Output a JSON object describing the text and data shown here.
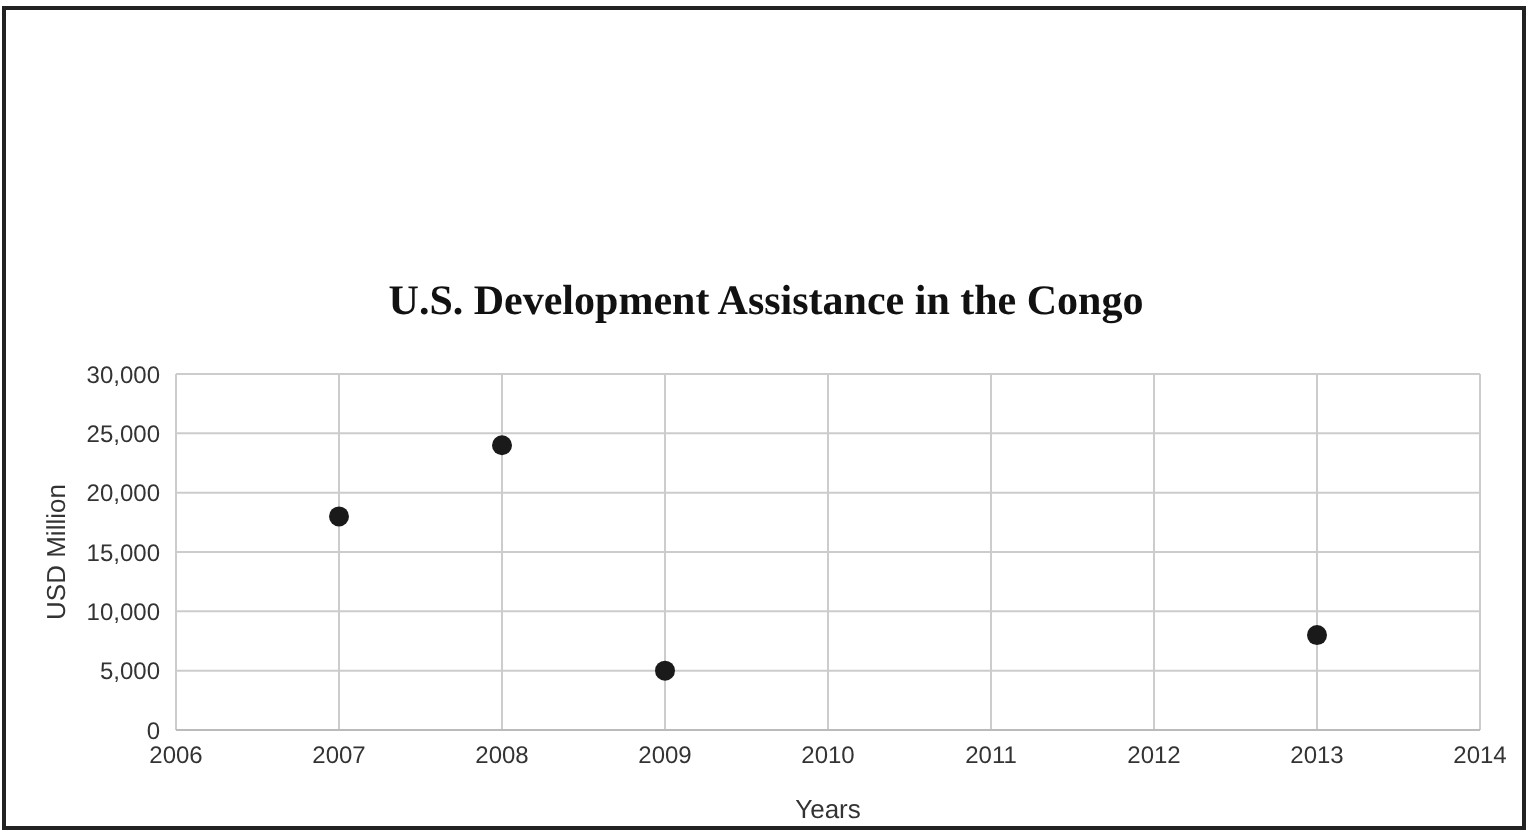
{
  "chart_data": {
    "type": "scatter",
    "title": "U.S.  Development Assistance in the Congo",
    "xlabel": "Years",
    "ylabel": "USD Million",
    "x": [
      2007,
      2008,
      2009,
      2013
    ],
    "values": [
      18000,
      24000,
      5000,
      8000
    ],
    "color": "#1a1a1a",
    "marker": "circle",
    "xlim": [
      2006,
      2014
    ],
    "xticks": [
      2006,
      2007,
      2008,
      2009,
      2010,
      2011,
      2012,
      2013,
      2014
    ],
    "ylim": [
      0,
      30000
    ],
    "yticks": [
      0,
      {
        "value": 5000,
        "label": "5,000"
      },
      {
        "value": 10000,
        "label": "10,000"
      },
      {
        "value": 15000,
        "label": "15,000"
      },
      {
        "value": 20000,
        "label": "20,000"
      },
      {
        "value": 25000,
        "label": "25,000"
      },
      {
        "value": 30000,
        "label": "30,000"
      }
    ],
    "grid": true
  }
}
